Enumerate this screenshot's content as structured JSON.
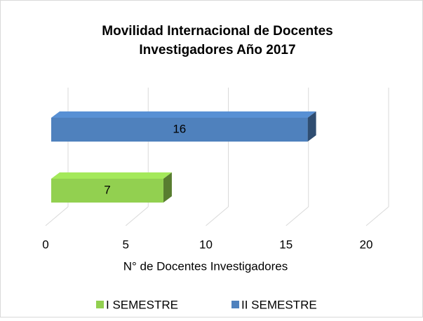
{
  "chart_data": {
    "type": "bar3d",
    "orientation": "horizontal",
    "title": [
      "Movilidad Internacional de Docentes",
      "Investigadores Año 2017"
    ],
    "categories": [
      null
    ],
    "series": [
      {
        "name": "I SEMESTRE",
        "color": "#92d050",
        "values": [
          7
        ]
      },
      {
        "name": "II SEMESTRE",
        "color": "#4f81bd",
        "values": [
          16
        ]
      }
    ],
    "xlabel": "N° de Docentes Investigadores",
    "xlim": [
      0,
      20
    ],
    "xticks": [
      0,
      5,
      10,
      15,
      20
    ],
    "grid": true,
    "legend": "bottom"
  }
}
